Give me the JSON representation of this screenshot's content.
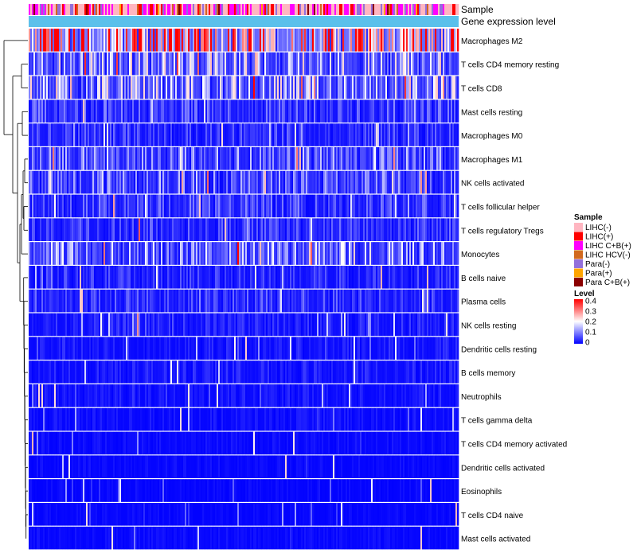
{
  "chart_data": {
    "type": "heatmap",
    "annotation_tracks": [
      "Sample",
      "Gene expression level"
    ],
    "rows": [
      {
        "label": "Macrophages M2",
        "mean": 0.32
      },
      {
        "label": "T cells CD4 memory resting",
        "mean": 0.14
      },
      {
        "label": "T cells CD8",
        "mean": 0.13
      },
      {
        "label": "Mast cells resting",
        "mean": 0.06
      },
      {
        "label": "Macrophages M0",
        "mean": 0.05
      },
      {
        "label": "Macrophages M1",
        "mean": 0.09
      },
      {
        "label": "NK cells activated",
        "mean": 0.08
      },
      {
        "label": "T cells follicular helper",
        "mean": 0.06
      },
      {
        "label": "T cells regulatory  Tregs",
        "mean": 0.05
      },
      {
        "label": "Monocytes",
        "mean": 0.11
      },
      {
        "label": "B cells naive",
        "mean": 0.04
      },
      {
        "label": "Plasma cells",
        "mean": 0.05
      },
      {
        "label": "NK cells resting",
        "mean": 0.03
      },
      {
        "label": "Dendritic cells resting",
        "mean": 0.025
      },
      {
        "label": "B cells memory",
        "mean": 0.025
      },
      {
        "label": "Neutrophils",
        "mean": 0.02
      },
      {
        "label": "T cells gamma delta",
        "mean": 0.015
      },
      {
        "label": "T cells CD4 memory activated",
        "mean": 0.012
      },
      {
        "label": "Dendritic cells activated",
        "mean": 0.01
      },
      {
        "label": "Eosinophils",
        "mean": 0.008
      },
      {
        "label": "T cells CD4 naive",
        "mean": 0.008
      },
      {
        "label": "Mast cells activated",
        "mean": 0.01
      }
    ],
    "n_columns": 270,
    "legend_sample": {
      "title": "Sample",
      "items": [
        {
          "label": "LIHC(-)",
          "color": "#FFB6C1"
        },
        {
          "label": "LIHC(+)",
          "color": "#FF0000"
        },
        {
          "label": "LIHC C+B(+)",
          "color": "#FF00FF"
        },
        {
          "label": "LIHC HCV(-)",
          "color": "#D2691E"
        },
        {
          "label": "Para(-)",
          "color": "#9370DB"
        },
        {
          "label": "Para(+)",
          "color": "#FFA500"
        },
        {
          "label": "Para C+B(+)",
          "color": "#8B0000"
        }
      ]
    },
    "legend_level": {
      "title": "Level",
      "ticks": [
        "0.4",
        "0.3",
        "0.2",
        "0.1",
        "0"
      ],
      "range": [
        0,
        0.4
      ]
    },
    "colors": {
      "low": "#0000FF",
      "mid": "#FFFFFF",
      "high": "#FF0000",
      "gene_expression_track": "#5BC0EB"
    }
  }
}
